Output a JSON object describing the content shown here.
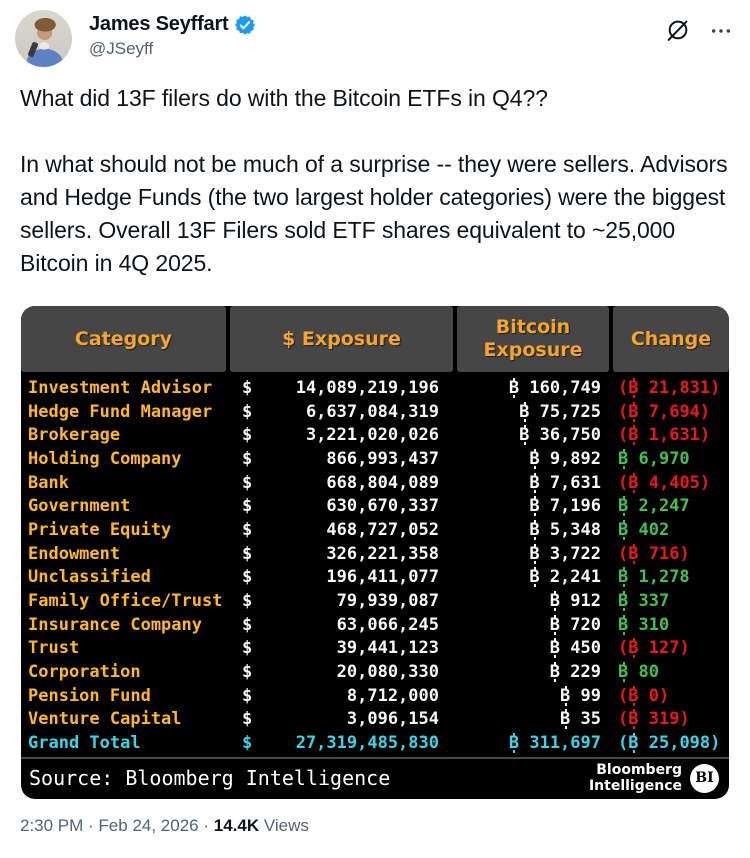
{
  "header": {
    "display_name": "James Seyffart",
    "handle": "@JSeyff",
    "icons": {
      "verified": "verified-check-badge",
      "grok": "grok-slashed-circle",
      "more": "more-ellipsis"
    }
  },
  "tweet": {
    "paragraphs": [
      "What did 13F filers do with the Bitcoin ETFs in Q4??",
      "In what should not be much of a surprise -- they were sellers. Advisors and Hedge Funds (the two largest holder categories) were the biggest sellers. Overall 13F Filers sold ETF shares equivalent to ~25,000 Bitcoin in 4Q 2025."
    ]
  },
  "table": {
    "headers": [
      "Category",
      "$ Exposure",
      "Bitcoin Exposure",
      "Change"
    ],
    "currency_symbol": "$",
    "bitcoin_symbol": "₿",
    "rows": [
      {
        "category": "Investment Advisor",
        "usd": "14,089,219,196",
        "btc": "₿ 160,749",
        "change": "(₿ 21,831)",
        "change_dir": "negative"
      },
      {
        "category": "Hedge Fund Manager",
        "usd": "6,637,084,319",
        "btc": "₿ 75,725",
        "change": "(₿ 7,694)",
        "change_dir": "negative"
      },
      {
        "category": "Brokerage",
        "usd": "3,221,020,026",
        "btc": "₿ 36,750",
        "change": "(₿ 1,631)",
        "change_dir": "negative"
      },
      {
        "category": "Holding Company",
        "usd": "866,993,437",
        "btc": "₿ 9,892",
        "change": "₿ 6,970",
        "change_dir": "positive"
      },
      {
        "category": "Bank",
        "usd": "668,804,089",
        "btc": "₿ 7,631",
        "change": "(₿ 4,405)",
        "change_dir": "negative"
      },
      {
        "category": "Government",
        "usd": "630,670,337",
        "btc": "₿ 7,196",
        "change": "₿ 2,247",
        "change_dir": "positive"
      },
      {
        "category": "Private Equity",
        "usd": "468,727,052",
        "btc": "₿ 5,348",
        "change": "₿ 402",
        "change_dir": "positive"
      },
      {
        "category": "Endowment",
        "usd": "326,221,358",
        "btc": "₿ 3,722",
        "change": "(₿ 716)",
        "change_dir": "negative"
      },
      {
        "category": "Unclassified",
        "usd": "196,411,077",
        "btc": "₿ 2,241",
        "change": "₿ 1,278",
        "change_dir": "positive"
      },
      {
        "category": "Family Office/Trust",
        "usd": "79,939,087",
        "btc": "₿ 912",
        "change": "₿ 337",
        "change_dir": "positive"
      },
      {
        "category": "Insurance Company",
        "usd": "63,066,245",
        "btc": "₿ 720",
        "change": "₿ 310",
        "change_dir": "positive"
      },
      {
        "category": "Trust",
        "usd": "39,441,123",
        "btc": "₿ 450",
        "change": "(₿ 127)",
        "change_dir": "negative"
      },
      {
        "category": "Corporation",
        "usd": "20,080,330",
        "btc": "₿ 229",
        "change": "₿ 80",
        "change_dir": "positive"
      },
      {
        "category": "Pension Fund",
        "usd": "8,712,000",
        "btc": "₿ 99",
        "change": "(₿ 0)",
        "change_dir": "negative"
      },
      {
        "category": "Venture Capital",
        "usd": "3,096,154",
        "btc": "₿ 35",
        "change": "(₿ 319)",
        "change_dir": "negative"
      }
    ],
    "grand_total": {
      "category": "Grand Total",
      "usd": "27,319,485,830",
      "btc": "₿ 311,697",
      "change": "(₿ 25,098)",
      "change_dir": "negative"
    },
    "source": "Source: Bloomberg Intelligence",
    "logo_line1": "Bloomberg",
    "logo_line2": "Intelligence",
    "logo_badge": "BI"
  },
  "timestamp": {
    "time": "2:30 PM",
    "separator": " · ",
    "date": "Feb 24, 2026",
    "views_count": "14.4K",
    "views_label": " Views"
  },
  "colors": {
    "accent_orange": "#f7a528",
    "category_gold": "#ffb91e",
    "value_white": "#f8f8f8",
    "positive_green": "#3ec255",
    "negative_red": "#ee1717",
    "total_cyan": "#38d6e8",
    "header_cell_bg": "#464646",
    "table_bg": "#000000",
    "verified_blue": "#1d9bf0",
    "text_primary": "#0f1419",
    "text_secondary": "#536471"
  }
}
